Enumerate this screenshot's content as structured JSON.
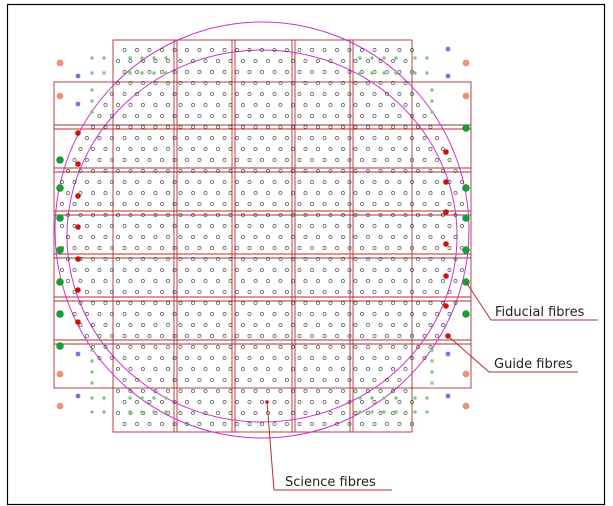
{
  "labels": {
    "fiducial": "Fiducial fibres",
    "guide": "Guide fibres",
    "science": "Science fibres"
  },
  "colors": {
    "grid": "#b03030",
    "circle": "#cc33cc",
    "fiducial": "#1a9c3a",
    "guide": "#cc1111",
    "science": "#333333",
    "corner_salmon": "#f0907a",
    "corner_blue": "#7777dd",
    "corner_green": "#7acc7a",
    "leader": "#b03030"
  }
}
